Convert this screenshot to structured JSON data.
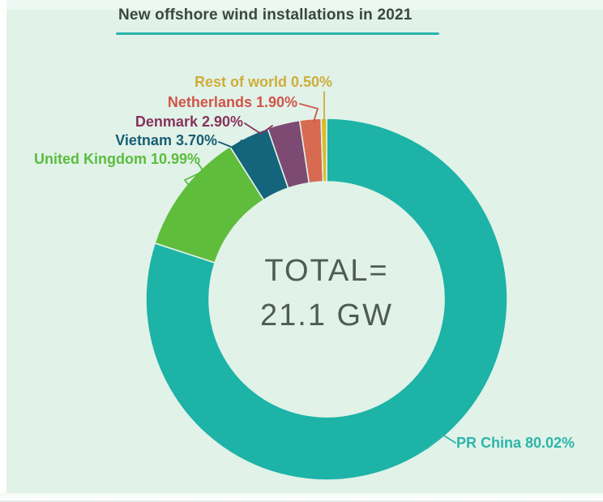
{
  "page": {
    "bg": "#e1f2e9"
  },
  "title": {
    "text": "New offshore wind installations in 2021",
    "color": "#3a4742",
    "underline_color": "#2ab4ab"
  },
  "center_label": {
    "line1": "TOTAL=",
    "line2": "21.1 GW",
    "color": "#4e5c55"
  },
  "chart_data": {
    "type": "pie",
    "subtype": "donut",
    "title": "New offshore wind installations in 2021",
    "center_text": "TOTAL= 21.1 GW",
    "total_value": 21.1,
    "unit": "GW",
    "start_angle_deg": 0,
    "direction": "clockwise",
    "legend_position": "callout-labels",
    "slice_gap_stroke": "#e1f2e9",
    "slices": [
      {
        "label": "PR China",
        "pct": 80.02,
        "display": "PR China 80.02%",
        "color": "#1db3a7",
        "label_color": "#2cb5a9"
      },
      {
        "label": "United Kingdom",
        "pct": 10.99,
        "display": "United Kingdom 10.99%",
        "color": "#60bd3c",
        "label_color": "#5abd3d"
      },
      {
        "label": "Vietnam",
        "pct": 3.7,
        "display": "Vietnam 3.70%",
        "color": "#14657c",
        "label_color": "#175d74"
      },
      {
        "label": "Denmark",
        "pct": 2.9,
        "display": "Denmark 2.90%",
        "color": "#7c4a72",
        "label_color": "#87335a"
      },
      {
        "label": "Netherlands",
        "pct": 1.9,
        "display": "Netherlands 1.90%",
        "color": "#d76a51",
        "label_color": "#d05548"
      },
      {
        "label": "Rest of world",
        "pct": 0.5,
        "display": "Rest of world 0.50%",
        "color": "#d8bc2b",
        "label_color": "#cfad39"
      }
    ]
  }
}
